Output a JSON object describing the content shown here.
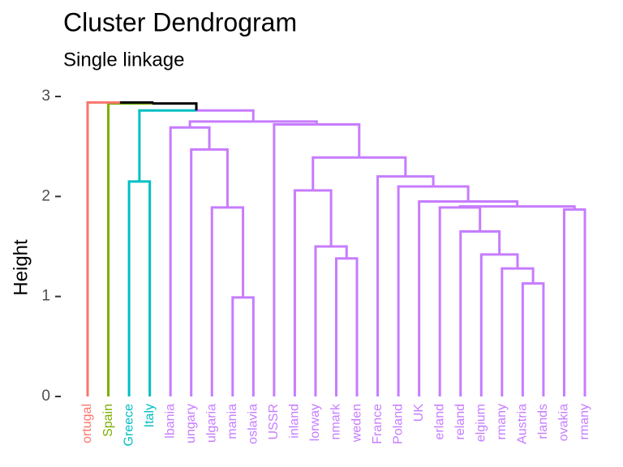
{
  "chart_data": {
    "type": "dendrogram",
    "title": "Cluster Dendrogram",
    "subtitle": "Single linkage",
    "y_label": "Height",
    "labels": [
      "ortugal",
      "Spain",
      "Greece",
      "Italy",
      "lbania",
      "ungary",
      "ulgaria",
      "mania",
      "oslavia",
      "USSR",
      "inland",
      "lorway",
      "nmark",
      "weden",
      "France",
      "Poland",
      "UK",
      "erland",
      "reland",
      "elgium",
      "rmany",
      "Austria",
      "rlands",
      "ovakia",
      "rmany"
    ],
    "leaf_colors": [
      "#F8766D",
      "#7CAE00",
      "#00BFC4",
      "#00BFC4",
      "#C77CFF",
      "#C77CFF",
      "#C77CFF",
      "#C77CFF",
      "#C77CFF",
      "#C77CFF",
      "#C77CFF",
      "#C77CFF",
      "#C77CFF",
      "#C77CFF",
      "#C77CFF",
      "#C77CFF",
      "#C77CFF",
      "#C77CFF",
      "#C77CFF",
      "#C77CFF",
      "#C77CFF",
      "#C77CFF",
      "#C77CFF",
      "#C77CFF",
      "#C77CFF"
    ],
    "merges": [
      {
        "left": -8,
        "right": -9,
        "height": 0.99
      },
      {
        "left": -22,
        "right": -23,
        "height": 1.13
      },
      {
        "left": -21,
        "right": 2,
        "height": 1.28
      },
      {
        "left": -13,
        "right": -14,
        "height": 1.38
      },
      {
        "left": -20,
        "right": 3,
        "height": 1.42
      },
      {
        "left": -12,
        "right": 4,
        "height": 1.5
      },
      {
        "left": -19,
        "right": 5,
        "height": 1.65
      },
      {
        "left": -24,
        "right": -25,
        "height": 1.87
      },
      {
        "left": -18,
        "right": 7,
        "height": 1.89
      },
      {
        "left": -7,
        "right": 1,
        "height": 1.89
      },
      {
        "left": 9,
        "right": 8,
        "height": 1.9
      },
      {
        "left": -17,
        "right": 11,
        "height": 1.95
      },
      {
        "left": -11,
        "right": 6,
        "height": 2.06
      },
      {
        "left": -16,
        "right": 12,
        "height": 2.1
      },
      {
        "left": -3,
        "right": -4,
        "height": 2.15
      },
      {
        "left": -15,
        "right": 14,
        "height": 2.2
      },
      {
        "left": 13,
        "right": 16,
        "height": 2.39
      },
      {
        "left": -6,
        "right": 10,
        "height": 2.47
      },
      {
        "left": -5,
        "right": 18,
        "height": 2.69
      },
      {
        "left": -10,
        "right": 17,
        "height": 2.72
      },
      {
        "left": 19,
        "right": 20,
        "height": 2.75
      },
      {
        "left": 15,
        "right": 21,
        "height": 2.86
      },
      {
        "left": -2,
        "right": 22,
        "height": 2.93
      },
      {
        "left": -1,
        "right": 23,
        "height": 2.94
      }
    ],
    "ylim": [
      0,
      3
    ],
    "yticks": [
      0,
      1,
      2,
      3
    ],
    "grid": false
  }
}
